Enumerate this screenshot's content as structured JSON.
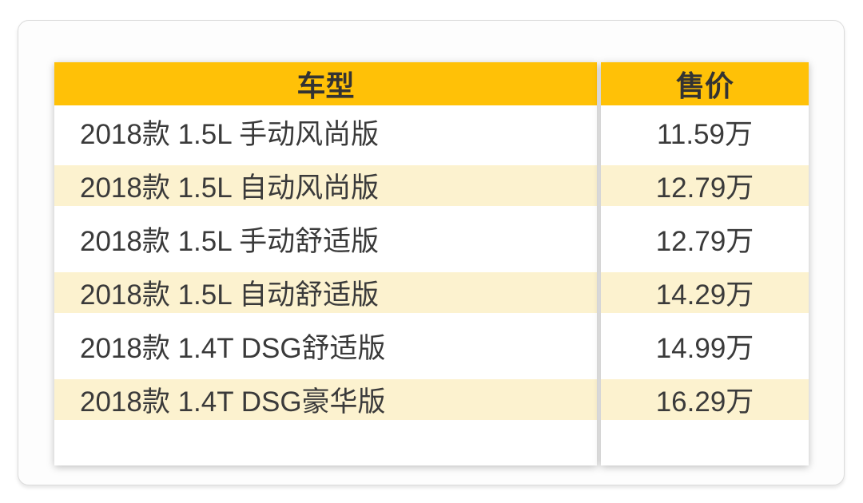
{
  "theme": {
    "header_bg": "#FFC107",
    "stripe_bg": "#FCF2CF",
    "text_color": "#3A3A3A",
    "card_border": "#DBDBDB"
  },
  "chart_data": {
    "type": "table",
    "columns": [
      "车型",
      "售价"
    ],
    "rows": [
      {
        "model": "2018款 1.5L 手动风尚版",
        "price": "11.59万"
      },
      {
        "model": "2018款 1.5L 自动风尚版",
        "price": "12.79万"
      },
      {
        "model": "2018款 1.5L 手动舒适版",
        "price": "12.79万"
      },
      {
        "model": "2018款 1.5L 自动舒适版",
        "price": "14.29万"
      },
      {
        "model": "2018款 1.4T DSG舒适版",
        "price": "14.99万"
      },
      {
        "model": "2018款 1.4T DSG豪华版",
        "price": "16.29万"
      }
    ],
    "layout": {
      "zebra_striping": true,
      "striped_row_indices": [
        1,
        3,
        5
      ]
    }
  }
}
